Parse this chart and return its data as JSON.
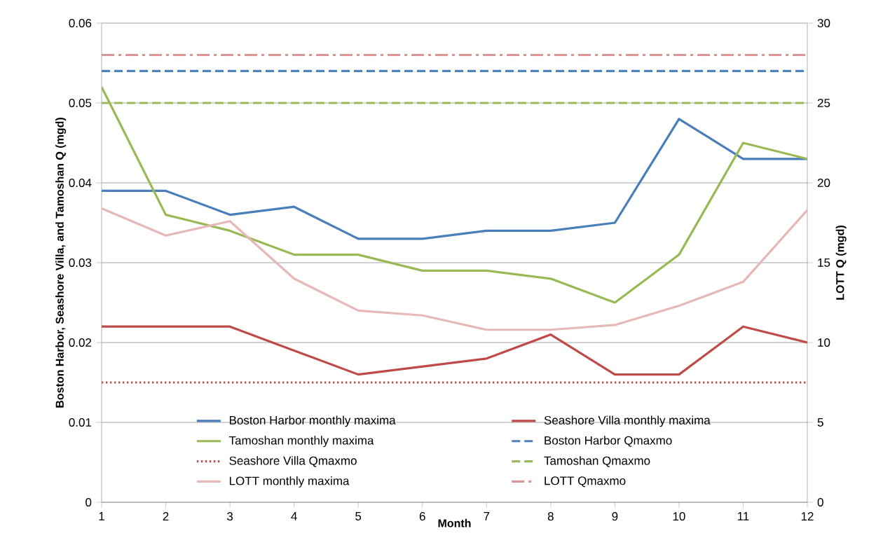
{
  "chart_data": {
    "type": "line",
    "xlabel": "Month",
    "ylabel": "Boston Harbor, Seashore Villa, and Tamoshan  Q (mgd)",
    "y2label": "LOTT Q (mgd)",
    "x": [
      1,
      2,
      3,
      4,
      5,
      6,
      7,
      8,
      9,
      10,
      11,
      12
    ],
    "xlim": [
      1,
      12
    ],
    "xticks": [
      1,
      2,
      3,
      4,
      5,
      6,
      7,
      8,
      9,
      10,
      11,
      12
    ],
    "ylim": [
      0,
      0.06
    ],
    "yticks": [
      0,
      0.01,
      0.02,
      0.03,
      0.04,
      0.05,
      0.06
    ],
    "y2lim": [
      0,
      30
    ],
    "y2ticks": [
      0,
      5,
      10,
      15,
      20,
      25,
      30
    ],
    "grid": "y",
    "legend": "bottom",
    "marker": "none",
    "series": [
      {
        "name": "Boston Harbor monthly maxima",
        "color": "#4a7ebb",
        "line_style": "solid",
        "values": [
          0.039,
          0.039,
          0.036,
          0.037,
          0.033,
          0.033,
          0.034,
          0.034,
          0.035,
          0.048,
          0.043,
          0.043
        ]
      },
      {
        "name": "Seashore Villa monthly maxima",
        "color": "#be4b48",
        "line_style": "solid",
        "values": [
          0.022,
          0.022,
          0.022,
          0.019,
          0.016,
          0.017,
          0.018,
          0.021,
          0.016,
          0.016,
          0.022,
          0.02
        ]
      },
      {
        "name": "Tamoshan monthly maxima",
        "color": "#98b954",
        "line_style": "solid",
        "values": [
          0.052,
          0.036,
          0.034,
          0.031,
          0.031,
          0.029,
          0.029,
          0.028,
          0.025,
          0.031,
          0.045,
          0.043
        ]
      },
      {
        "name": "Boston Harbor Qmaxmo",
        "color": "#4f81bd",
        "line_style": "dashed",
        "values": [
          0.054,
          0.054,
          0.054,
          0.054,
          0.054,
          0.054,
          0.054,
          0.054,
          0.054,
          0.054,
          0.054,
          0.054
        ]
      },
      {
        "name": "Seashore Villa Qmaxmo",
        "color": "#c0504d",
        "line_style": "dotted",
        "values": [
          0.015,
          0.015,
          0.015,
          0.015,
          0.015,
          0.015,
          0.015,
          0.015,
          0.015,
          0.015,
          0.015,
          0.015
        ]
      },
      {
        "name": "Tamoshan Qmaxmo",
        "color": "#9bbb59",
        "line_style": "dashed",
        "values": [
          0.05,
          0.05,
          0.05,
          0.05,
          0.05,
          0.05,
          0.05,
          0.05,
          0.05,
          0.05,
          0.05,
          0.05
        ]
      },
      {
        "name": "LOTT monthly  maxima",
        "color": "#e6b9b8",
        "line_style": "solid",
        "axis": "y2",
        "values": [
          18.4,
          16.7,
          17.6,
          14.0,
          12.0,
          11.7,
          10.8,
          10.8,
          11.1,
          12.3,
          13.8,
          18.3
        ]
      },
      {
        "name": "LOTT Qmaxmo",
        "color": "#d99694",
        "line_style": "dashdot",
        "axis": "y2",
        "values": [
          28,
          28,
          28,
          28,
          28,
          28,
          28,
          28,
          28,
          28,
          28,
          28
        ]
      }
    ]
  }
}
